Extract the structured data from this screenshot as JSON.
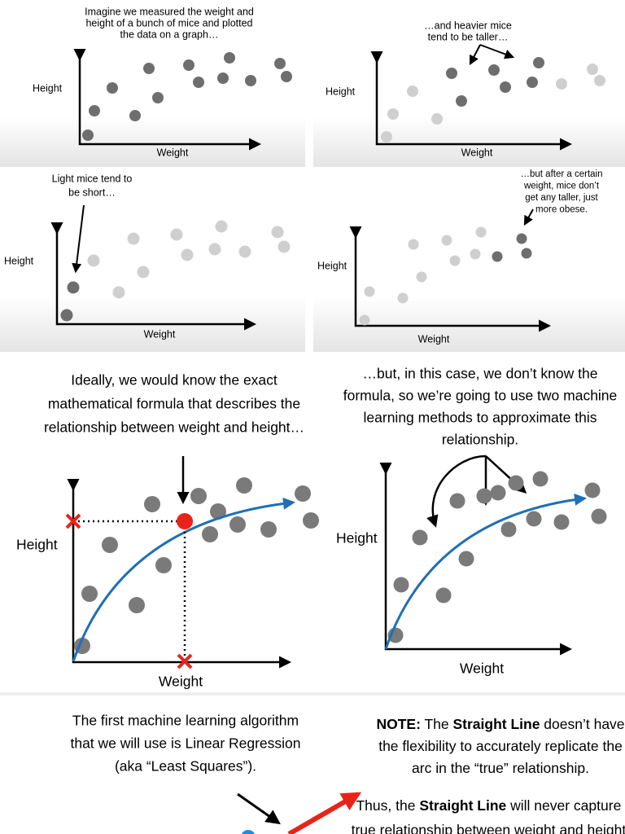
{
  "panels": [
    {
      "caption": [
        "Imagine we measured the weight and",
        "height of a bunch of mice and plotted",
        "the data on a graph…"
      ],
      "y_label": "Height",
      "x_label": "Weight"
    },
    {
      "caption": [
        "…and heavier mice",
        "tend to be taller…"
      ],
      "y_label": "Height",
      "x_label": "Weight"
    },
    {
      "caption": [
        "Light mice tend to",
        "be short…"
      ],
      "y_label": "Height",
      "x_label": "Weight"
    },
    {
      "caption": [
        "…but after a certain",
        "weight, mice don’t",
        "get any taller, just",
        "more obese."
      ],
      "y_label": "Height",
      "x_label": "Weight"
    },
    {
      "caption": [
        "Ideally, we would know the exact",
        "mathematical formula that describes the",
        "relationship between weight and height…"
      ],
      "y_label": "Height",
      "x_label": "Weight"
    },
    {
      "caption": [
        "…but, in this case, we don’t know the",
        "formula, so we’re going to use two machine",
        "learning methods to approximate this",
        "relationship."
      ],
      "y_label": "Height",
      "x_label": "Weight"
    },
    {
      "caption": [
        "The first machine learning algorithm",
        "that we will use is Linear Regression",
        "(aka “Least Squares”)."
      ]
    }
  ],
  "note": {
    "lines": [
      [
        "NOTE:",
        " The ",
        "Straight Line",
        " doesn’t have"
      ],
      [
        "the flexibility to accurately replicate the"
      ],
      [
        "arc in the “true” relationship."
      ],
      [
        "Thus, the ",
        "Straight Line",
        " will never capture the"
      ],
      [
        "true relationship between weight and height, no"
      ]
    ]
  }
}
